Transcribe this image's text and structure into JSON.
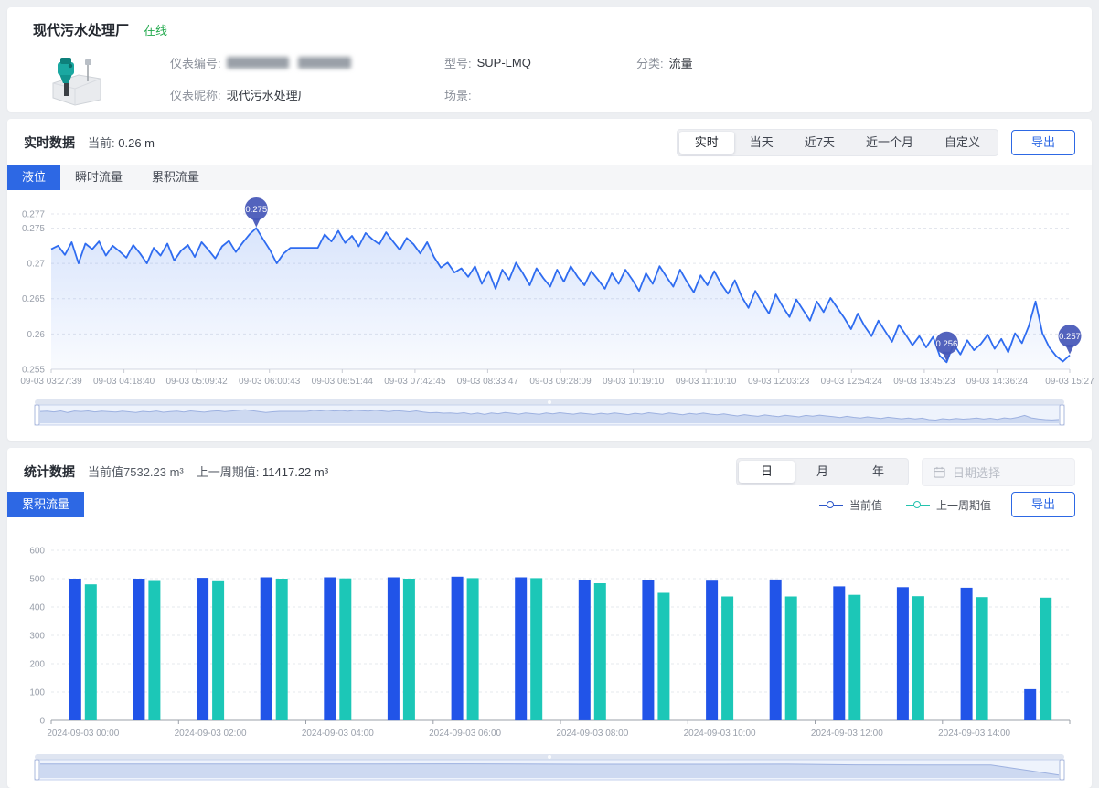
{
  "colors": {
    "accent_blue": "#2d68e4",
    "status_green": "#21a94c",
    "line_blue": "#2f6cf0",
    "marker_indigo": "#4657b8",
    "bar_current_blue": "#2154e8",
    "bar_prev_teal": "#1cc7b7"
  },
  "header": {
    "title": "现代污水处理厂",
    "status": "在线",
    "fields": {
      "meter_no_label": "仪表编号:",
      "model_label": "型号:",
      "model_value": "SUP-LMQ",
      "category_label": "分类:",
      "category_value": "流量",
      "nickname_label": "仪表昵称:",
      "nickname_value": "现代污水处理厂",
      "scene_label": "场景:"
    }
  },
  "realtime": {
    "title": "实时数据",
    "current_label": "当前:",
    "current_value": "0.26 m",
    "range_tabs": [
      "实时",
      "当天",
      "近7天",
      "近一个月",
      "自定义"
    ],
    "active_range": "实时",
    "export_label": "导出",
    "metric_tabs": [
      "液位",
      "瞬时流量",
      "累积流量"
    ],
    "active_metric": "液位"
  },
  "stats": {
    "title": "统计数据",
    "current_text": "当前值7532.23 m³",
    "prev_label": "上一周期值:",
    "prev_value": "11417.22 m³",
    "period_tabs": [
      "日",
      "月",
      "年"
    ],
    "active_period": "日",
    "date_placeholder": "日期选择",
    "metric_tab": "累积流量",
    "legend": [
      {
        "label": "当前值",
        "color": "#2c56c9"
      },
      {
        "label": "上一周期值",
        "color": "#24c3ae"
      }
    ],
    "export_label": "导出"
  },
  "chart_data": [
    {
      "type": "line",
      "name": "液位",
      "unit": "m",
      "ylim": [
        0.255,
        0.277
      ],
      "yticks": [
        0.277,
        0.275,
        0.27,
        0.265,
        0.26,
        0.255
      ],
      "x_labels": [
        "09-03 03:27:39",
        "09-03 04:18:40",
        "09-03 05:09:42",
        "09-03 06:00:43",
        "09-03 06:51:44",
        "09-03 07:42:45",
        "09-03 08:33:47",
        "09-03 09:28:09",
        "09-03 10:19:10",
        "09-03 11:10:10",
        "09-03 12:03:23",
        "09-03 12:54:24",
        "09-03 13:45:23",
        "09-03 14:36:24",
        "09-03 15:27"
      ],
      "line_color": "#2f6cf0",
      "marker_color": "#4657b8",
      "marker_labels": {
        "max": "0.275",
        "min": "0.256",
        "last": "0.257"
      },
      "values": [
        0.272,
        0.2725,
        0.2712,
        0.273,
        0.27,
        0.2728,
        0.272,
        0.2731,
        0.2711,
        0.2725,
        0.2717,
        0.2708,
        0.2726,
        0.2714,
        0.27,
        0.2722,
        0.2711,
        0.2728,
        0.2704,
        0.2718,
        0.2726,
        0.2709,
        0.273,
        0.2719,
        0.2707,
        0.2724,
        0.2732,
        0.2716,
        0.2729,
        0.2741,
        0.275,
        0.2734,
        0.2719,
        0.27,
        0.2714,
        0.2722,
        0.2722,
        0.2722,
        0.2722,
        0.2722,
        0.2741,
        0.2731,
        0.2746,
        0.2729,
        0.2739,
        0.2724,
        0.2743,
        0.2734,
        0.2727,
        0.2744,
        0.2731,
        0.2719,
        0.2736,
        0.2727,
        0.2714,
        0.273,
        0.2709,
        0.2694,
        0.2701,
        0.2687,
        0.2693,
        0.2681,
        0.2696,
        0.2671,
        0.2689,
        0.2664,
        0.2691,
        0.2677,
        0.2701,
        0.2686,
        0.2669,
        0.2693,
        0.2679,
        0.2667,
        0.2691,
        0.2674,
        0.2696,
        0.2681,
        0.2669,
        0.2689,
        0.2677,
        0.2664,
        0.2686,
        0.2671,
        0.2691,
        0.2677,
        0.2661,
        0.2686,
        0.2671,
        0.2696,
        0.2681,
        0.2667,
        0.2691,
        0.2674,
        0.2659,
        0.2683,
        0.2669,
        0.2689,
        0.2671,
        0.2657,
        0.2676,
        0.2653,
        0.2637,
        0.2661,
        0.2644,
        0.2629,
        0.2656,
        0.2639,
        0.2624,
        0.2649,
        0.2634,
        0.2619,
        0.2646,
        0.2631,
        0.2651,
        0.2637,
        0.2623,
        0.2607,
        0.2629,
        0.2611,
        0.2597,
        0.2619,
        0.2604,
        0.2589,
        0.2613,
        0.2599,
        0.2584,
        0.2597,
        0.2581,
        0.2596,
        0.2569,
        0.256,
        0.2586,
        0.2571,
        0.2591,
        0.2577,
        0.2586,
        0.2599,
        0.2579,
        0.2593,
        0.2574,
        0.2601,
        0.2587,
        0.2611,
        0.2646,
        0.2601,
        0.2581,
        0.2569,
        0.2561,
        0.257
      ]
    },
    {
      "type": "bar",
      "name": "累积流量",
      "unit": "m³",
      "ylim": [
        0,
        600
      ],
      "ytick_step": 100,
      "categories": [
        "2024-09-03 00:00",
        "2024-09-03 01:00",
        "2024-09-03 02:00",
        "2024-09-03 03:00",
        "2024-09-03 04:00",
        "2024-09-03 05:00",
        "2024-09-03 06:00",
        "2024-09-03 07:00",
        "2024-09-03 08:00",
        "2024-09-03 09:00",
        "2024-09-03 10:00",
        "2024-09-03 11:00",
        "2024-09-03 12:00",
        "2024-09-03 13:00",
        "2024-09-03 14:00",
        "2024-09-03 15:00"
      ],
      "x_labels": [
        "2024-09-03 00:00",
        "2024-09-03 02:00",
        "2024-09-03 04:00",
        "2024-09-03 06:00",
        "2024-09-03 08:00",
        "2024-09-03 10:00",
        "2024-09-03 12:00",
        "2024-09-03 14:00"
      ],
      "series": [
        {
          "name": "当前值",
          "color": "#2154e8",
          "values": [
            500,
            500,
            503,
            505,
            505,
            505,
            507,
            505,
            495,
            494,
            493,
            497,
            473,
            470,
            468,
            110
          ]
        },
        {
          "name": "上一周期值",
          "color": "#1cc7b7",
          "values": [
            480,
            492,
            491,
            500,
            501,
            500,
            502,
            502,
            484,
            450,
            437,
            437,
            443,
            438,
            435,
            433
          ]
        }
      ]
    }
  ]
}
